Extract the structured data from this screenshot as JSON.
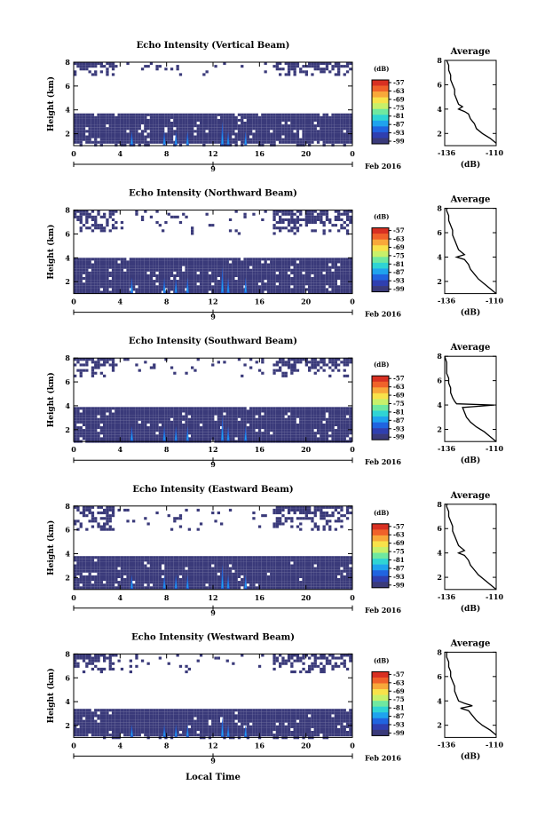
{
  "figure": {
    "bottom_xlabel": "Local Time",
    "date_label": "Feb 2016",
    "date_tick": "9"
  },
  "colorbar": {
    "unit": "(dB)",
    "tick_labels": [
      "-57",
      "-63",
      "-69",
      "-75",
      "-81",
      "-87",
      "-93",
      "-99"
    ],
    "colors": [
      "#3a3a7a",
      "#2f3fb0",
      "#2064e0",
      "#1fa3ee",
      "#2fd4d4",
      "#6fe8a0",
      "#c8f06a",
      "#f8e24a",
      "#f8a83a",
      "#f0622a",
      "#d83022"
    ]
  },
  "chart_data": [
    {
      "type": "heatmap",
      "title": "Echo Intensity (Vertical Beam)",
      "xlabel": "",
      "ylabel": "Height (km)",
      "xlim": [
        0,
        24
      ],
      "ylim": [
        1,
        8
      ],
      "x_ticks": [
        "0",
        "4",
        "8",
        "12",
        "16",
        "20",
        "0"
      ],
      "y_ticks": [
        "2",
        "4",
        "6",
        "8"
      ],
      "colorbar_range_db": [
        -99,
        -57
      ],
      "low_layer_top_km": 3.7,
      "low_layer_base_km": 1.3,
      "upper_band_km": [
        7.0,
        8.0
      ],
      "convective_cores_hour": [
        5.0,
        7.8,
        8.8,
        9.8,
        12.8,
        13.3,
        14.8
      ],
      "average_profile": {
        "title": "Average",
        "xlabel": "(dB)",
        "x_ticks": [
          "-136",
          "-110"
        ],
        "xlim": [
          -136,
          -110
        ],
        "y_ticks": [
          "2",
          "4",
          "6",
          "8"
        ],
        "ylim": [
          1,
          8
        ],
        "height_km": [
          1.2,
          1.6,
          2.0,
          2.4,
          2.8,
          3.2,
          3.6,
          3.8,
          4.0,
          4.2,
          4.4,
          4.8,
          5.2,
          5.6,
          6.0,
          6.4,
          6.8,
          7.2,
          7.6,
          8.0
        ],
        "db": [
          -110,
          -113,
          -117,
          -120,
          -121,
          -123,
          -124,
          -126,
          -129,
          -127,
          -129,
          -130,
          -131,
          -131,
          -132,
          -133,
          -133,
          -134,
          -134,
          -135
        ]
      }
    },
    {
      "type": "heatmap",
      "title": "Echo Intensity (Northward Beam)",
      "xlabel": "",
      "ylabel": "Height (km)",
      "xlim": [
        0,
        24
      ],
      "ylim": [
        1,
        8
      ],
      "x_ticks": [
        "0",
        "4",
        "8",
        "12",
        "16",
        "20",
        "0"
      ],
      "y_ticks": [
        "2",
        "4",
        "6",
        "8"
      ],
      "colorbar_range_db": [
        -99,
        -57
      ],
      "low_layer_top_km": 4.0,
      "low_layer_base_km": 1.0,
      "upper_band_km": [
        6.0,
        8.0
      ],
      "convective_cores_hour": [
        5.0,
        7.8,
        8.8,
        9.8,
        12.8,
        13.3,
        14.8
      ],
      "average_profile": {
        "title": "Average",
        "xlabel": "(dB)",
        "x_ticks": [
          "-136",
          "-110"
        ],
        "xlim": [
          -136,
          -110
        ],
        "y_ticks": [
          "2",
          "4",
          "6",
          "8"
        ],
        "ylim": [
          1,
          8
        ],
        "height_km": [
          1.0,
          1.4,
          1.8,
          2.2,
          2.6,
          3.0,
          3.4,
          3.8,
          4.0,
          4.2,
          4.6,
          5.0,
          5.4,
          5.8,
          6.2,
          6.6,
          7.0,
          7.4,
          7.8,
          8.0
        ],
        "db": [
          -110,
          -113,
          -116,
          -119,
          -121,
          -123,
          -124,
          -126,
          -130,
          -126,
          -129,
          -130,
          -131,
          -132,
          -132,
          -133,
          -134,
          -134,
          -135,
          -135
        ]
      }
    },
    {
      "type": "heatmap",
      "title": "Echo Intensity (Southward Beam)",
      "xlabel": "",
      "ylabel": "Height (km)",
      "xlim": [
        0,
        24
      ],
      "ylim": [
        1,
        8
      ],
      "x_ticks": [
        "0",
        "4",
        "8",
        "12",
        "16",
        "20",
        "0"
      ],
      "y_ticks": [
        "2",
        "4",
        "6",
        "8"
      ],
      "colorbar_range_db": [
        -99,
        -57
      ],
      "low_layer_top_km": 3.9,
      "low_layer_base_km": 1.0,
      "upper_band_km": [
        6.5,
        8.0
      ],
      "convective_cores_hour": [
        5.0,
        7.8,
        8.8,
        9.8,
        12.8,
        13.3,
        14.8
      ],
      "average_profile": {
        "title": "Average",
        "xlabel": "(dB)",
        "x_ticks": [
          "-136",
          "-110"
        ],
        "xlim": [
          -136,
          -110
        ],
        "y_ticks": [
          "2",
          "4",
          "6",
          "8"
        ],
        "ylim": [
          1,
          8
        ],
        "height_km": [
          1.0,
          1.4,
          1.8,
          2.2,
          2.6,
          3.0,
          3.4,
          3.8,
          4.0,
          4.1,
          4.3,
          4.6,
          5.0,
          5.4,
          5.8,
          6.2,
          6.6,
          7.0,
          7.5,
          8.0
        ],
        "db": [
          -110,
          -113,
          -116,
          -120,
          -123,
          -125,
          -126,
          -127,
          -111,
          -130,
          -131,
          -132,
          -133,
          -133,
          -134,
          -134,
          -135,
          -135,
          -135,
          -136
        ]
      }
    },
    {
      "type": "heatmap",
      "title": "Echo Intensity (Eastward Beam)",
      "xlabel": "",
      "ylabel": "Height (km)",
      "xlim": [
        0,
        24
      ],
      "ylim": [
        1,
        8
      ],
      "x_ticks": [
        "0",
        "4",
        "8",
        "12",
        "16",
        "20",
        "0"
      ],
      "y_ticks": [
        "2",
        "4",
        "6",
        "8"
      ],
      "colorbar_range_db": [
        -99,
        -57
      ],
      "low_layer_top_km": 3.8,
      "low_layer_base_km": 1.0,
      "upper_band_km": [
        6.0,
        8.0
      ],
      "convective_cores_hour": [
        5.0,
        7.8,
        8.8,
        9.8,
        12.8,
        13.3,
        14.8
      ],
      "average_profile": {
        "title": "Average",
        "xlabel": "(dB)",
        "x_ticks": [
          "-136",
          "-110"
        ],
        "xlim": [
          -136,
          -110
        ],
        "y_ticks": [
          "2",
          "4",
          "6",
          "8"
        ],
        "ylim": [
          1,
          8
        ],
        "height_km": [
          1.0,
          1.4,
          1.8,
          2.2,
          2.6,
          3.0,
          3.4,
          3.8,
          4.0,
          4.2,
          4.6,
          5.0,
          5.4,
          5.8,
          6.2,
          6.6,
          7.0,
          7.4,
          7.8,
          8.0
        ],
        "db": [
          -110,
          -113,
          -116,
          -119,
          -121,
          -123,
          -124,
          -126,
          -129,
          -126,
          -129,
          -130,
          -131,
          -132,
          -132,
          -133,
          -134,
          -134,
          -135,
          -135
        ]
      }
    },
    {
      "type": "heatmap",
      "title": "Echo Intensity (Westward Beam)",
      "xlabel": "Local Time",
      "ylabel": "Height (km)",
      "xlim": [
        0,
        24
      ],
      "ylim": [
        1,
        8
      ],
      "x_ticks": [
        "0",
        "4",
        "8",
        "12",
        "16",
        "20",
        "0"
      ],
      "y_ticks": [
        "2",
        "4",
        "6",
        "8"
      ],
      "colorbar_range_db": [
        -99,
        -57
      ],
      "low_layer_top_km": 3.4,
      "low_layer_base_km": 1.3,
      "upper_band_km": [
        6.5,
        8.0
      ],
      "convective_cores_hour": [
        5.0,
        7.8,
        8.8,
        9.8,
        12.8,
        13.3,
        14.8
      ],
      "average_profile": {
        "title": "Average",
        "xlabel": "(dB)",
        "x_ticks": [
          "-136",
          "-110"
        ],
        "xlim": [
          -136,
          -110
        ],
        "y_ticks": [
          "2",
          "4",
          "6",
          "8"
        ],
        "ylim": [
          1,
          8
        ],
        "height_km": [
          1.2,
          1.6,
          2.0,
          2.4,
          2.8,
          3.2,
          3.4,
          3.6,
          3.8,
          4.0,
          4.4,
          4.8,
          5.2,
          5.6,
          6.0,
          6.4,
          6.8,
          7.2,
          7.6,
          8.0
        ],
        "db": [
          -110,
          -113,
          -117,
          -120,
          -122,
          -124,
          -128,
          -122,
          -126,
          -129,
          -130,
          -131,
          -131,
          -132,
          -133,
          -133,
          -134,
          -134,
          -135,
          -135
        ]
      }
    }
  ]
}
